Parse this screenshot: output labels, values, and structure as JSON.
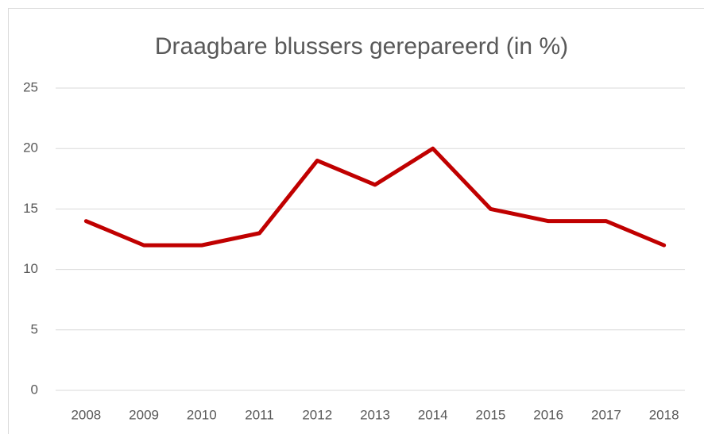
{
  "chart_data": {
    "type": "line",
    "title": "Draagbare blussers gerepareerd (in %)",
    "categories": [
      "2008",
      "2009",
      "2010",
      "2011",
      "2012",
      "2013",
      "2014",
      "2015",
      "2016",
      "2017",
      "2018"
    ],
    "values": [
      14,
      12,
      12,
      13,
      19,
      17,
      20,
      15,
      14,
      14,
      12
    ],
    "color": "#c00000",
    "ylim": [
      0,
      25
    ],
    "yticks": [
      0,
      5,
      10,
      15,
      20,
      25
    ],
    "grid": true
  }
}
